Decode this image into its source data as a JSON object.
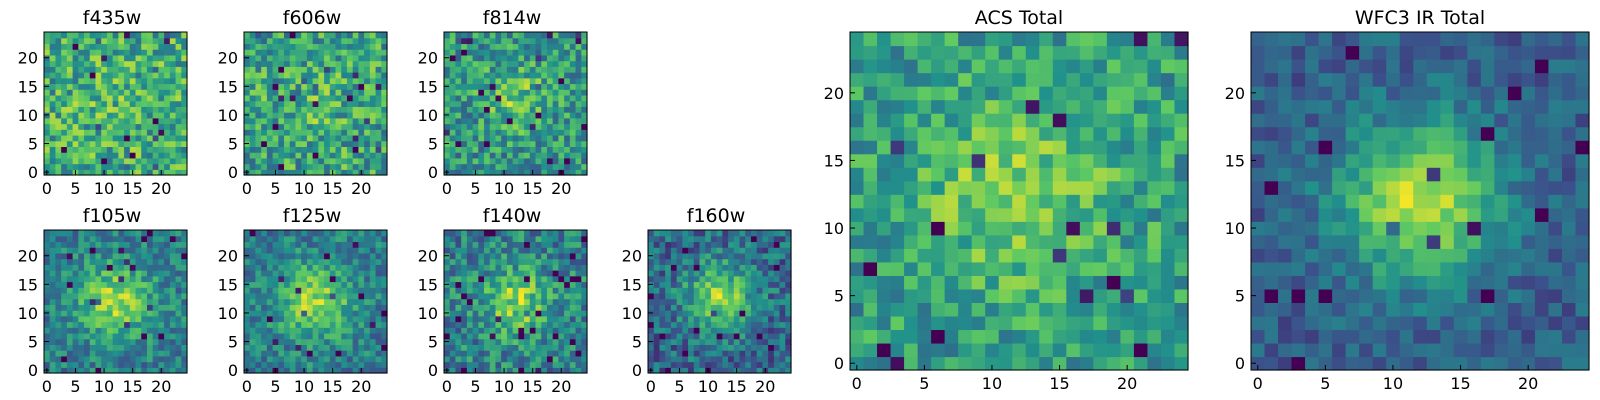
{
  "figure": {
    "colormap": [
      "#440154",
      "#3b528b",
      "#21918c",
      "#5ec962",
      "#fde725"
    ]
  },
  "chart_data": [
    {
      "type": "heatmap",
      "title": "f435w",
      "xlim": [
        -0.5,
        24.5
      ],
      "ylim": [
        -0.5,
        24.5
      ],
      "xticks": [
        0,
        5,
        10,
        15,
        20
      ],
      "yticks": [
        0,
        5,
        10,
        15,
        20
      ],
      "grid": false,
      "legend": "none",
      "image_size": [
        25,
        25
      ],
      "center": [
        12,
        12
      ],
      "peak_spread": 5,
      "source_strength": 0.05,
      "noise_level": 0.26,
      "brightness_offset": 0.62,
      "seed": 11
    },
    {
      "type": "heatmap",
      "title": "f606w",
      "xlim": [
        -0.5,
        24.5
      ],
      "ylim": [
        -0.5,
        24.5
      ],
      "xticks": [
        0,
        5,
        10,
        15,
        20
      ],
      "yticks": [
        0,
        5,
        10,
        15,
        20
      ],
      "grid": false,
      "legend": "none",
      "image_size": [
        25,
        25
      ],
      "center": [
        12,
        12
      ],
      "peak_spread": 5,
      "source_strength": 0.08,
      "noise_level": 0.26,
      "brightness_offset": 0.58,
      "seed": 23
    },
    {
      "type": "heatmap",
      "title": "f814w",
      "xlim": [
        -0.5,
        24.5
      ],
      "ylim": [
        -0.5,
        24.5
      ],
      "xticks": [
        0,
        5,
        10,
        15,
        20
      ],
      "yticks": [
        0,
        5,
        10,
        15,
        20
      ],
      "grid": false,
      "legend": "none",
      "image_size": [
        25,
        25
      ],
      "center": [
        12,
        13
      ],
      "peak_spread": 4,
      "source_strength": 0.22,
      "noise_level": 0.24,
      "brightness_offset": 0.52,
      "seed": 37
    },
    {
      "type": "heatmap",
      "title": "f105w",
      "xlim": [
        -0.5,
        24.5
      ],
      "ylim": [
        -0.5,
        24.5
      ],
      "xticks": [
        0,
        5,
        10,
        15,
        20
      ],
      "yticks": [
        0,
        5,
        10,
        15,
        20
      ],
      "grid": false,
      "legend": "none",
      "image_size": [
        25,
        25
      ],
      "center": [
        12,
        12
      ],
      "peak_spread": 4.5,
      "source_strength": 0.42,
      "noise_level": 0.18,
      "brightness_offset": 0.42,
      "seed": 41
    },
    {
      "type": "heatmap",
      "title": "f125w",
      "xlim": [
        -0.5,
        24.5
      ],
      "ylim": [
        -0.5,
        24.5
      ],
      "xticks": [
        0,
        5,
        10,
        15,
        20
      ],
      "yticks": [
        0,
        5,
        10,
        15,
        20
      ],
      "grid": false,
      "legend": "none",
      "image_size": [
        25,
        25
      ],
      "center": [
        12,
        12
      ],
      "peak_spread": 4.5,
      "source_strength": 0.42,
      "noise_level": 0.18,
      "brightness_offset": 0.42,
      "seed": 53
    },
    {
      "type": "heatmap",
      "title": "f140w",
      "xlim": [
        -0.5,
        24.5
      ],
      "ylim": [
        -0.5,
        24.5
      ],
      "xticks": [
        0,
        5,
        10,
        15,
        20
      ],
      "yticks": [
        0,
        5,
        10,
        15,
        20
      ],
      "grid": false,
      "legend": "none",
      "image_size": [
        25,
        25
      ],
      "center": [
        12,
        12
      ],
      "peak_spread": 4,
      "source_strength": 0.38,
      "noise_level": 0.22,
      "brightness_offset": 0.44,
      "seed": 67
    },
    {
      "type": "heatmap",
      "title": "f160w",
      "xlim": [
        -0.5,
        24.5
      ],
      "ylim": [
        -0.5,
        24.5
      ],
      "xticks": [
        0,
        5,
        10,
        15,
        20
      ],
      "yticks": [
        0,
        5,
        10,
        15,
        20
      ],
      "grid": false,
      "legend": "none",
      "image_size": [
        25,
        25
      ],
      "center": [
        12,
        13
      ],
      "peak_spread": 4,
      "source_strength": 0.5,
      "noise_level": 0.2,
      "brightness_offset": 0.34,
      "seed": 79
    },
    {
      "type": "heatmap",
      "title": "ACS Total",
      "xlim": [
        -0.5,
        24.5
      ],
      "ylim": [
        -0.5,
        24.5
      ],
      "xticks": [
        0,
        5,
        10,
        15,
        20
      ],
      "yticks": [
        0,
        5,
        10,
        15,
        20
      ],
      "grid": false,
      "legend": "none",
      "image_size": [
        25,
        25
      ],
      "center": [
        12,
        13
      ],
      "peak_spread": 5,
      "source_strength": 0.22,
      "noise_level": 0.2,
      "brightness_offset": 0.56,
      "seed": 91
    },
    {
      "type": "heatmap",
      "title": "WFC3 IR Total",
      "xlim": [
        -0.5,
        24.5
      ],
      "ylim": [
        -0.5,
        24.5
      ],
      "xticks": [
        0,
        5,
        10,
        15,
        20
      ],
      "yticks": [
        0,
        5,
        10,
        15,
        20
      ],
      "grid": false,
      "legend": "none",
      "image_size": [
        25,
        25
      ],
      "center": [
        12,
        12
      ],
      "peak_spread": 4,
      "source_strength": 0.62,
      "noise_level": 0.12,
      "brightness_offset": 0.3,
      "seed": 103
    }
  ]
}
